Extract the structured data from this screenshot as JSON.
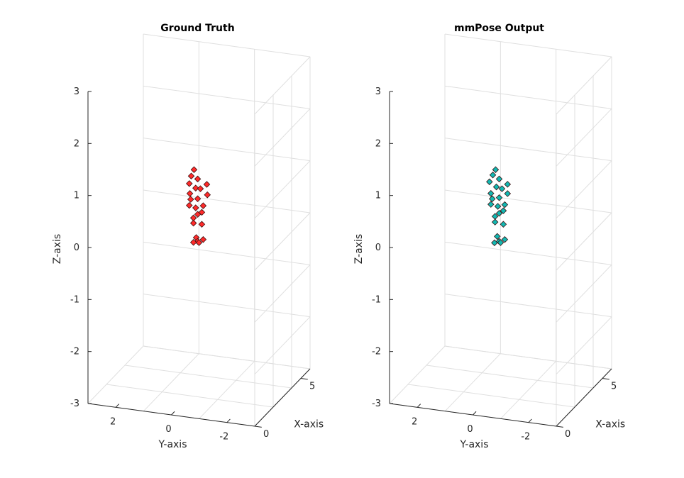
{
  "chart_data": [
    {
      "type": "scatter3d",
      "title": "Ground Truth",
      "xlabel": "X-axis",
      "ylabel": "Y-axis",
      "zlabel": "Z-axis",
      "xlim": [
        0,
        6
      ],
      "ylim": [
        -3,
        3
      ],
      "zlim": [
        -3,
        3
      ],
      "xticks": [
        0,
        5
      ],
      "yticks": [
        2,
        0,
        -2
      ],
      "zticks": [
        3,
        2,
        1,
        0,
        -1,
        -2,
        -3
      ],
      "grid": true,
      "marker_color": "#ff2a2a",
      "points": [
        {
          "x": 3.0,
          "y": 0.18,
          "z": 1.15
        },
        {
          "x": 3.0,
          "y": 0.28,
          "z": 1.02
        },
        {
          "x": 3.0,
          "y": 0.05,
          "z": 0.98
        },
        {
          "x": 3.0,
          "y": 0.35,
          "z": 0.87
        },
        {
          "x": 3.0,
          "y": 0.12,
          "z": 0.8
        },
        {
          "x": 3.0,
          "y": -0.28,
          "z": 0.9
        },
        {
          "x": 3.0,
          "y": -0.05,
          "z": 0.8
        },
        {
          "x": 3.0,
          "y": -0.3,
          "z": 0.7
        },
        {
          "x": 3.0,
          "y": 0.33,
          "z": 0.68
        },
        {
          "x": 3.0,
          "y": 0.05,
          "z": 0.6
        },
        {
          "x": 3.0,
          "y": 0.3,
          "z": 0.57
        },
        {
          "x": 3.0,
          "y": -0.15,
          "z": 0.48
        },
        {
          "x": 3.0,
          "y": 0.12,
          "z": 0.42
        },
        {
          "x": 3.0,
          "y": 0.35,
          "z": 0.45
        },
        {
          "x": 3.0,
          "y": -0.1,
          "z": 0.35
        },
        {
          "x": 3.0,
          "y": 0.2,
          "z": 0.22
        },
        {
          "x": 3.0,
          "y": 0.05,
          "z": 0.3
        },
        {
          "x": 3.0,
          "y": -0.1,
          "z": 0.12
        },
        {
          "x": 3.0,
          "y": 0.2,
          "z": 0.12
        },
        {
          "x": 3.0,
          "y": 0.1,
          "z": -0.15
        },
        {
          "x": 3.0,
          "y": -0.15,
          "z": -0.17
        },
        {
          "x": 3.0,
          "y": 0.05,
          "z": -0.22
        },
        {
          "x": 3.0,
          "y": 0.0,
          "z": -0.24
        },
        {
          "x": 3.0,
          "y": 0.2,
          "z": -0.25
        }
      ]
    },
    {
      "type": "scatter3d",
      "title": "mmPose Output",
      "xlabel": "X-axis",
      "ylabel": "Y-axis",
      "zlabel": "Z-axis",
      "xlim": [
        0,
        6
      ],
      "ylim": [
        -3,
        3
      ],
      "zlim": [
        -3,
        3
      ],
      "xticks": [
        0,
        5
      ],
      "yticks": [
        2,
        0,
        -2
      ],
      "zticks": [
        3,
        2,
        1,
        0,
        -1,
        -2,
        -3
      ],
      "grid": true,
      "marker_color": "#12b8b2",
      "points": [
        {
          "x": 3.0,
          "y": 0.18,
          "z": 1.15
        },
        {
          "x": 3.0,
          "y": 0.28,
          "z": 1.04
        },
        {
          "x": 3.0,
          "y": 0.05,
          "z": 0.98
        },
        {
          "x": 3.0,
          "y": 0.4,
          "z": 0.9
        },
        {
          "x": 3.0,
          "y": 0.15,
          "z": 0.82
        },
        {
          "x": 3.0,
          "y": -0.25,
          "z": 0.9
        },
        {
          "x": 3.0,
          "y": -0.05,
          "z": 0.8
        },
        {
          "x": 3.0,
          "y": -0.25,
          "z": 0.72
        },
        {
          "x": 3.0,
          "y": 0.35,
          "z": 0.68
        },
        {
          "x": 3.0,
          "y": 0.05,
          "z": 0.62
        },
        {
          "x": 3.0,
          "y": 0.3,
          "z": 0.58
        },
        {
          "x": 3.0,
          "y": -0.15,
          "z": 0.5
        },
        {
          "x": 3.0,
          "y": 0.1,
          "z": 0.45
        },
        {
          "x": 3.0,
          "y": 0.35,
          "z": 0.47
        },
        {
          "x": 3.0,
          "y": -0.1,
          "z": 0.38
        },
        {
          "x": 3.0,
          "y": 0.2,
          "z": 0.25
        },
        {
          "x": 3.0,
          "y": 0.05,
          "z": 0.32
        },
        {
          "x": 3.0,
          "y": -0.1,
          "z": 0.12
        },
        {
          "x": 3.0,
          "y": 0.2,
          "z": 0.14
        },
        {
          "x": 3.0,
          "y": 0.12,
          "z": -0.13
        },
        {
          "x": 3.0,
          "y": -0.15,
          "z": -0.17
        },
        {
          "x": 3.0,
          "y": 0.05,
          "z": -0.22
        },
        {
          "x": 3.0,
          "y": 0.0,
          "z": -0.24
        },
        {
          "x": 3.0,
          "y": 0.22,
          "z": -0.26
        }
      ]
    }
  ]
}
